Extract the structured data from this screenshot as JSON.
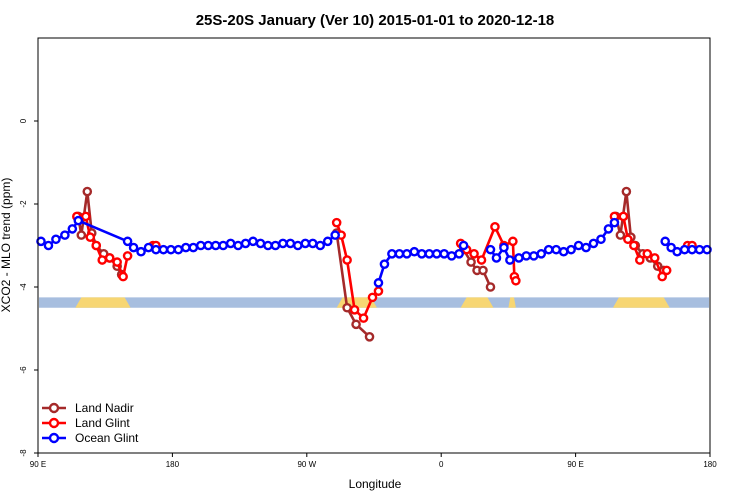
{
  "chart_data": {
    "type": "line",
    "title": "25S-20S January (Ver 10)   2015-01-01 to 2020-12-18",
    "xlabel": "Longitude",
    "ylabel": "XCO2 - MLO trend (ppm)",
    "x_ticks": [
      {
        "value": 0,
        "label": "90 E"
      },
      {
        "value": 90,
        "label": "180"
      },
      {
        "value": 180,
        "label": "90 W"
      },
      {
        "value": 270,
        "label": "0"
      },
      {
        "value": 360,
        "label": "90 E"
      },
      {
        "value": 450,
        "label": "180"
      }
    ],
    "y_ticks": [
      {
        "value": 0,
        "label": "0"
      },
      {
        "value": -2,
        "label": "-2"
      },
      {
        "value": -4,
        "label": "-4"
      },
      {
        "value": -6,
        "label": "-6"
      },
      {
        "value": -8,
        "label": "-8"
      }
    ],
    "xlim": [
      0,
      450
    ],
    "ylim": [
      -8,
      2
    ],
    "legend_position": "bottom-left",
    "surface_band": {
      "y_top": -4.25,
      "y_bottom": -4.5,
      "ocean_color": "#a7bedf",
      "land_color": "#f7d673",
      "land_segments": [
        [
          25,
          62
        ],
        [
          200,
          227
        ],
        [
          283,
          305
        ],
        [
          315,
          320
        ],
        [
          385,
          423
        ]
      ]
    },
    "series": [
      {
        "name": "Land Nadir",
        "color": "#a52a2a",
        "segments": [
          [
            [
              27,
              -2.3
            ],
            [
              29,
              -2.75
            ],
            [
              33,
              -1.7
            ],
            [
              36,
              -2.7
            ],
            [
              39,
              -3.0
            ],
            [
              44,
              -3.2
            ],
            [
              48,
              -3.3
            ],
            [
              53,
              -3.5
            ],
            [
              56,
              -3.7
            ]
          ],
          [
            [
              200,
              -2.7
            ],
            [
              207,
              -4.5
            ],
            [
              213,
              -4.9
            ],
            [
              222,
              -5.2
            ]
          ],
          [
            [
              285,
              -3.1
            ],
            [
              290,
              -3.4
            ],
            [
              294,
              -3.6
            ],
            [
              298,
              -3.6
            ],
            [
              303,
              -4.0
            ]
          ],
          [
            [
              387,
              -2.3
            ],
            [
              390,
              -2.75
            ],
            [
              394,
              -1.7
            ],
            [
              397,
              -2.8
            ],
            [
              400,
              -3.0
            ],
            [
              405,
              -3.2
            ],
            [
              410,
              -3.3
            ],
            [
              415,
              -3.5
            ],
            [
              419,
              -3.6
            ]
          ]
        ]
      },
      {
        "name": "Land Glint",
        "color": "#ff0000",
        "segments": [
          [
            [
              26,
              -2.3
            ],
            [
              32,
              -2.3
            ],
            [
              35,
              -2.8
            ],
            [
              39,
              -3.0
            ],
            [
              43,
              -3.35
            ],
            [
              48,
              -3.3
            ],
            [
              53,
              -3.4
            ],
            [
              57,
              -3.75
            ],
            [
              60,
              -3.25
            ]
          ],
          [
            [
              77,
              -3.0
            ],
            [
              79,
              -3.0
            ]
          ],
          [
            [
              200,
              -2.45
            ],
            [
              203,
              -2.75
            ],
            [
              207,
              -3.35
            ],
            [
              212,
              -4.55
            ],
            [
              218,
              -4.75
            ],
            [
              224,
              -4.25
            ],
            [
              228,
              -4.1
            ]
          ],
          [
            [
              283,
              -2.95
            ],
            [
              287,
              -3.1
            ],
            [
              292,
              -3.2
            ],
            [
              297,
              -3.35
            ],
            [
              306,
              -2.55
            ],
            [
              312,
              -3.0
            ],
            [
              318,
              -2.9
            ],
            [
              319,
              -3.75
            ],
            [
              320,
              -3.85
            ]
          ],
          [
            [
              386,
              -2.3
            ],
            [
              392,
              -2.3
            ],
            [
              395,
              -2.85
            ],
            [
              399,
              -3.0
            ],
            [
              403,
              -3.35
            ],
            [
              408,
              -3.2
            ],
            [
              413,
              -3.3
            ],
            [
              418,
              -3.75
            ],
            [
              421,
              -3.6
            ]
          ],
          [
            [
              435,
              -3.0
            ],
            [
              438,
              -3.0
            ]
          ]
        ]
      },
      {
        "name": "Ocean Glint",
        "color": "#0000ff",
        "segments": [
          [
            [
              2,
              -2.9
            ],
            [
              7,
              -3.0
            ],
            [
              12,
              -2.85
            ],
            [
              18,
              -2.75
            ],
            [
              23,
              -2.6
            ],
            [
              27,
              -2.4
            ],
            [
              60,
              -2.9
            ],
            [
              64,
              -3.05
            ],
            [
              69,
              -3.15
            ],
            [
              74,
              -3.05
            ],
            [
              79,
              -3.1
            ],
            [
              84,
              -3.1
            ],
            [
              89,
              -3.1
            ],
            [
              94,
              -3.1
            ],
            [
              99,
              -3.05
            ],
            [
              104,
              -3.05
            ],
            [
              109,
              -3.0
            ],
            [
              114,
              -3.0
            ],
            [
              119,
              -3.0
            ],
            [
              124,
              -3.0
            ],
            [
              129,
              -2.95
            ],
            [
              134,
              -3.0
            ],
            [
              139,
              -2.95
            ],
            [
              144,
              -2.9
            ],
            [
              149,
              -2.95
            ],
            [
              154,
              -3.0
            ],
            [
              159,
              -3.0
            ],
            [
              164,
              -2.95
            ],
            [
              169,
              -2.95
            ],
            [
              174,
              -3.0
            ],
            [
              179,
              -2.95
            ],
            [
              184,
              -2.95
            ],
            [
              189,
              -3.0
            ],
            [
              194,
              -2.9
            ],
            [
              199,
              -2.75
            ]
          ],
          [
            [
              228,
              -3.9
            ],
            [
              232,
              -3.45
            ],
            [
              237,
              -3.2
            ],
            [
              242,
              -3.2
            ],
            [
              247,
              -3.2
            ],
            [
              252,
              -3.15
            ],
            [
              257,
              -3.2
            ],
            [
              262,
              -3.2
            ],
            [
              267,
              -3.2
            ],
            [
              272,
              -3.2
            ],
            [
              277,
              -3.25
            ],
            [
              282,
              -3.2
            ],
            [
              285,
              -3.0
            ]
          ],
          [
            [
              303,
              -3.1
            ],
            [
              307,
              -3.3
            ],
            [
              312,
              -3.05
            ],
            [
              316,
              -3.35
            ],
            [
              322,
              -3.3
            ],
            [
              327,
              -3.25
            ],
            [
              332,
              -3.25
            ],
            [
              337,
              -3.2
            ],
            [
              342,
              -3.1
            ],
            [
              347,
              -3.1
            ],
            [
              352,
              -3.15
            ],
            [
              357,
              -3.1
            ],
            [
              362,
              -3.0
            ],
            [
              367,
              -3.05
            ],
            [
              372,
              -2.95
            ],
            [
              377,
              -2.85
            ],
            [
              382,
              -2.6
            ],
            [
              386,
              -2.45
            ]
          ],
          [
            [
              420,
              -2.9
            ],
            [
              424,
              -3.05
            ],
            [
              428,
              -3.15
            ],
            [
              433,
              -3.1
            ],
            [
              438,
              -3.1
            ],
            [
              443,
              -3.1
            ],
            [
              448,
              -3.1
            ]
          ]
        ]
      }
    ]
  }
}
